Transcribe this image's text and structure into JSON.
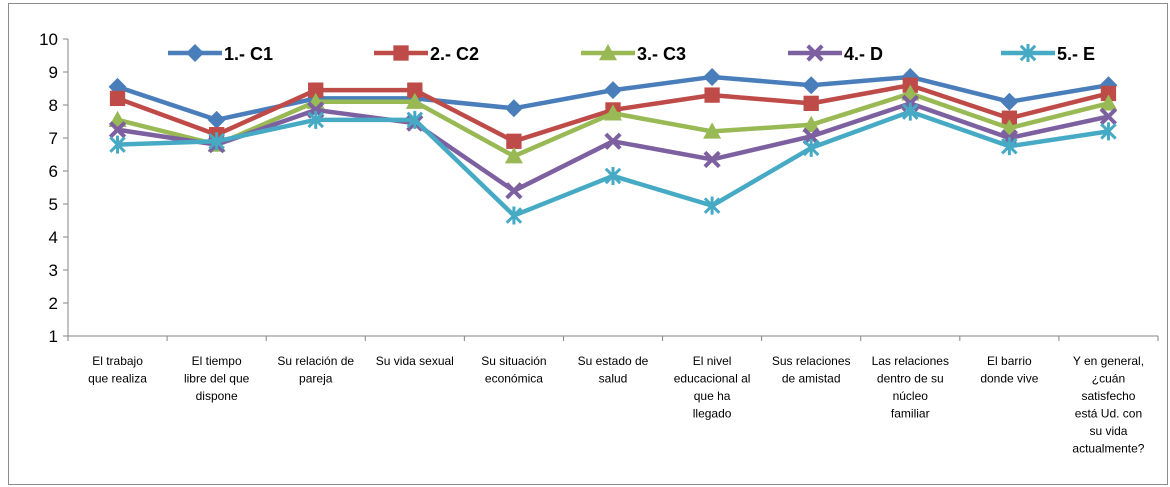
{
  "chart_data": {
    "type": "line",
    "title": "",
    "xlabel": "",
    "ylabel": "",
    "ylim": [
      1,
      10
    ],
    "yticks": [
      "1",
      "2",
      "3",
      "4",
      "5",
      "6",
      "7",
      "8",
      "9",
      "10"
    ],
    "grid": false,
    "legend_position": "top",
    "categories": [
      [
        "El trabajo",
        "que realiza"
      ],
      [
        "El tiempo",
        "libre del que",
        "dispone"
      ],
      [
        "Su relación de",
        "pareja"
      ],
      [
        "Su vida sexual"
      ],
      [
        "Su situación",
        "económica"
      ],
      [
        "Su estado de",
        "salud"
      ],
      [
        "El nivel",
        "educacional al",
        "que ha",
        "llegado"
      ],
      [
        "Sus relaciones",
        "de amistad"
      ],
      [
        "Las relaciones",
        "dentro de su",
        "núcleo",
        "familiar"
      ],
      [
        "El barrio",
        "donde vive"
      ],
      [
        "Y en general,",
        "¿cuán",
        "satisfecho",
        "está Ud. con",
        "su vida",
        "actualmente?"
      ]
    ],
    "series": [
      {
        "name": "1.- C1",
        "color": "#4a7ebb",
        "marker": "diamond",
        "values": [
          8.55,
          7.55,
          8.2,
          8.2,
          7.9,
          8.45,
          8.85,
          8.6,
          8.85,
          8.1,
          8.6
        ]
      },
      {
        "name": "2.- C2",
        "color": "#be4b48",
        "marker": "square",
        "values": [
          8.2,
          7.1,
          8.45,
          8.45,
          6.9,
          7.85,
          8.3,
          8.05,
          8.6,
          7.6,
          8.35
        ]
      },
      {
        "name": "3.- C3",
        "color": "#98b954",
        "marker": "triangle",
        "values": [
          7.55,
          6.8,
          8.1,
          8.1,
          6.45,
          7.75,
          7.2,
          7.4,
          8.35,
          7.3,
          8.05
        ]
      },
      {
        "name": "4.- D",
        "color": "#7d60a0",
        "marker": "x",
        "values": [
          7.25,
          6.8,
          7.85,
          7.45,
          5.4,
          6.9,
          6.35,
          7.05,
          8.05,
          7.0,
          7.65
        ]
      },
      {
        "name": "5.- E",
        "color": "#46aac5",
        "marker": "star",
        "values": [
          6.8,
          6.9,
          7.55,
          7.55,
          4.65,
          5.85,
          4.95,
          6.7,
          7.8,
          6.75,
          7.2
        ]
      }
    ]
  }
}
